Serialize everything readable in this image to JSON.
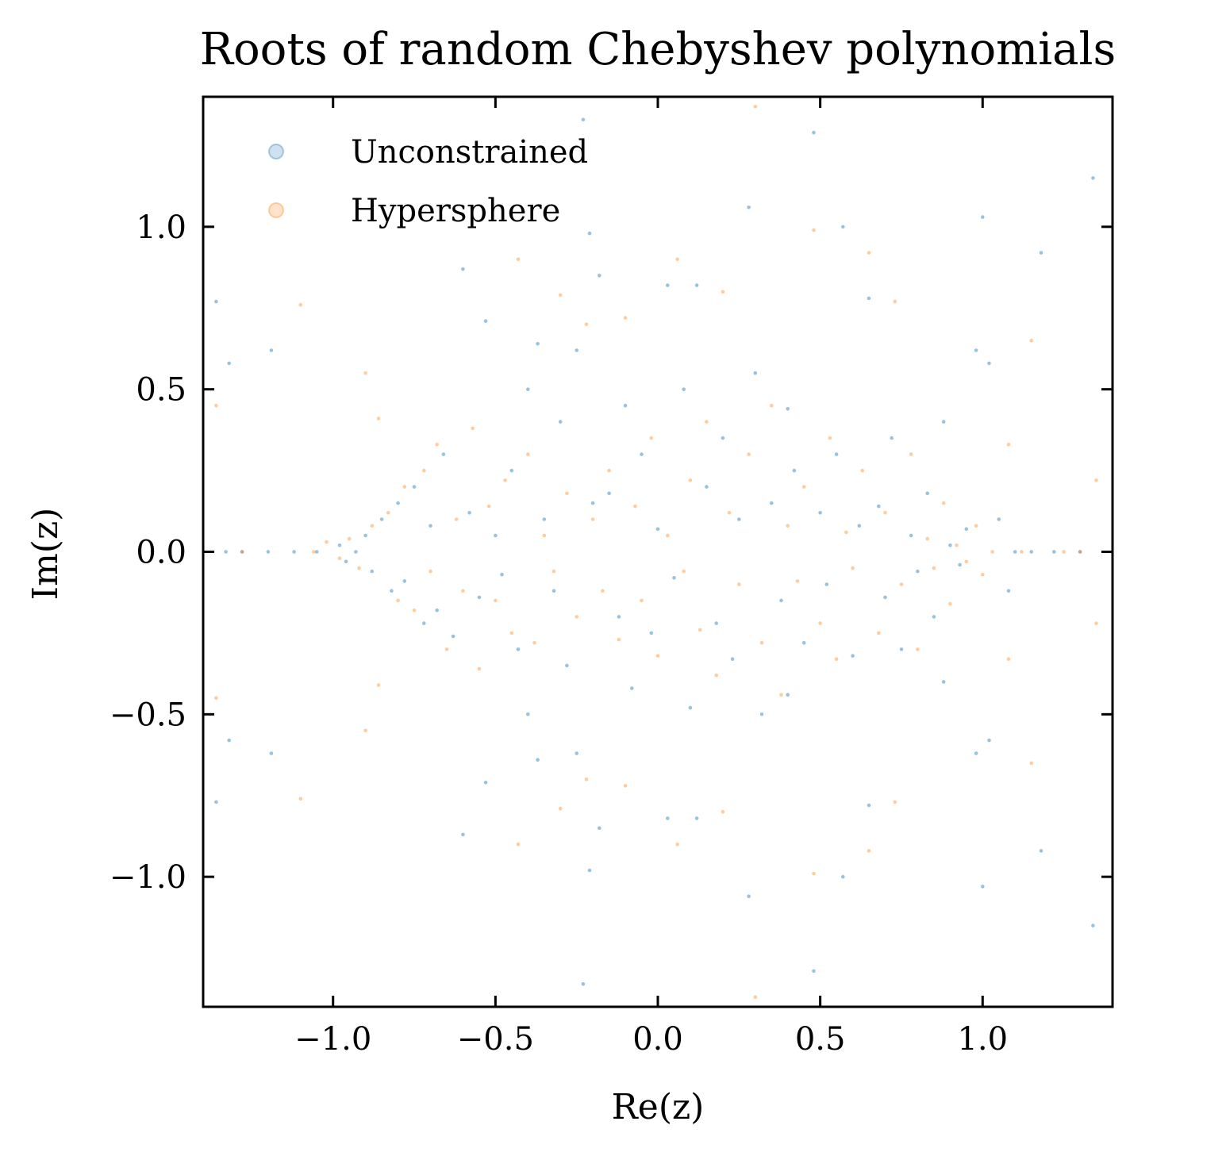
{
  "chart_data": {
    "type": "scatter",
    "title": "Roots of random Chebyshev polynomials",
    "xlabel": "Re(z)",
    "ylabel": "Im(z)",
    "xlim": [
      -1.4,
      1.4
    ],
    "ylim": [
      -1.4,
      1.4
    ],
    "xticks": [
      -1.0,
      -0.5,
      0.0,
      0.5,
      1.0
    ],
    "yticks": [
      -1.0,
      -0.5,
      0.0,
      0.5,
      1.0
    ],
    "xtick_labels": [
      "−1.0",
      "−0.5",
      "0.0",
      "0.5",
      "1.0"
    ],
    "ytick_labels": [
      "−1.0",
      "−0.5",
      "0.0",
      "0.5",
      "1.0"
    ],
    "grid": false,
    "legend_position": "top-left",
    "series": [
      {
        "name": "Unconstrained",
        "color": "#1f77b4",
        "points": [
          [
            -1.33,
            0.0
          ],
          [
            -1.28,
            0.0
          ],
          [
            -1.2,
            0.0
          ],
          [
            -1.12,
            0.0
          ],
          [
            -1.36,
            0.77
          ],
          [
            -1.36,
            -0.77
          ],
          [
            -1.32,
            0.58
          ],
          [
            -1.32,
            -0.58
          ],
          [
            -1.19,
            0.62
          ],
          [
            -1.19,
            -0.62
          ],
          [
            -1.05,
            0.0
          ],
          [
            -0.98,
            0.02
          ],
          [
            -0.96,
            -0.03
          ],
          [
            -0.93,
            0.0
          ],
          [
            -0.9,
            0.05
          ],
          [
            -0.88,
            -0.06
          ],
          [
            -0.85,
            0.1
          ],
          [
            -0.82,
            -0.12
          ],
          [
            -0.8,
            0.15
          ],
          [
            -0.78,
            -0.09
          ],
          [
            -0.75,
            0.2
          ],
          [
            -0.72,
            -0.22
          ],
          [
            -0.7,
            0.08
          ],
          [
            -0.68,
            -0.18
          ],
          [
            -0.66,
            0.3
          ],
          [
            -0.63,
            -0.26
          ],
          [
            -0.6,
            0.87
          ],
          [
            -0.6,
            -0.87
          ],
          [
            -0.58,
            0.12
          ],
          [
            -0.55,
            -0.14
          ],
          [
            -0.53,
            0.71
          ],
          [
            -0.53,
            -0.71
          ],
          [
            -0.5,
            0.05
          ],
          [
            -0.48,
            -0.07
          ],
          [
            -0.45,
            0.25
          ],
          [
            -0.43,
            -0.3
          ],
          [
            -0.4,
            0.5
          ],
          [
            -0.4,
            -0.5
          ],
          [
            -0.37,
            0.64
          ],
          [
            -0.37,
            -0.64
          ],
          [
            -0.35,
            0.1
          ],
          [
            -0.32,
            -0.12
          ],
          [
            -0.3,
            0.4
          ],
          [
            -0.28,
            -0.35
          ],
          [
            -0.25,
            0.62
          ],
          [
            -0.25,
            -0.62
          ],
          [
            -0.23,
            1.33
          ],
          [
            -0.23,
            -1.33
          ],
          [
            -0.21,
            0.98
          ],
          [
            -0.21,
            -0.98
          ],
          [
            -0.2,
            0.15
          ],
          [
            -0.18,
            0.85
          ],
          [
            -0.18,
            -0.85
          ],
          [
            -0.15,
            0.18
          ],
          [
            -0.12,
            -0.2
          ],
          [
            -0.1,
            0.45
          ],
          [
            -0.08,
            -0.42
          ],
          [
            -0.05,
            0.3
          ],
          [
            -0.02,
            -0.25
          ],
          [
            0.0,
            0.07
          ],
          [
            0.03,
            0.82
          ],
          [
            0.03,
            -0.82
          ],
          [
            0.05,
            -0.08
          ],
          [
            0.08,
            0.5
          ],
          [
            0.1,
            -0.48
          ],
          [
            0.12,
            0.82
          ],
          [
            0.12,
            -0.82
          ],
          [
            0.15,
            0.2
          ],
          [
            0.18,
            -0.22
          ],
          [
            0.2,
            0.35
          ],
          [
            0.23,
            -0.33
          ],
          [
            0.25,
            0.1
          ],
          [
            0.28,
            1.06
          ],
          [
            0.28,
            -1.06
          ],
          [
            0.3,
            0.55
          ],
          [
            0.32,
            -0.5
          ],
          [
            0.35,
            0.15
          ],
          [
            0.38,
            -0.15
          ],
          [
            0.4,
            0.44
          ],
          [
            0.4,
            -0.44
          ],
          [
            0.42,
            0.25
          ],
          [
            0.45,
            -0.28
          ],
          [
            0.48,
            1.29
          ],
          [
            0.48,
            -1.29
          ],
          [
            0.5,
            0.12
          ],
          [
            0.52,
            -0.1
          ],
          [
            0.55,
            0.3
          ],
          [
            0.57,
            1.0
          ],
          [
            0.57,
            -1.0
          ],
          [
            0.6,
            -0.32
          ],
          [
            0.62,
            0.08
          ],
          [
            0.65,
            0.78
          ],
          [
            0.65,
            -0.78
          ],
          [
            0.68,
            0.14
          ],
          [
            0.7,
            -0.14
          ],
          [
            0.72,
            0.35
          ],
          [
            0.75,
            -0.3
          ],
          [
            0.78,
            0.05
          ],
          [
            0.8,
            -0.06
          ],
          [
            0.83,
            0.18
          ],
          [
            0.85,
            -0.2
          ],
          [
            0.88,
            0.4
          ],
          [
            0.88,
            -0.4
          ],
          [
            0.9,
            0.02
          ],
          [
            0.93,
            -0.04
          ],
          [
            0.95,
            0.07
          ],
          [
            0.98,
            0.62
          ],
          [
            0.98,
            -0.62
          ],
          [
            1.0,
            1.03
          ],
          [
            1.0,
            -1.03
          ],
          [
            1.02,
            0.58
          ],
          [
            1.02,
            -0.58
          ],
          [
            1.05,
            0.1
          ],
          [
            1.08,
            -0.12
          ],
          [
            1.1,
            0.0
          ],
          [
            1.15,
            0.0
          ],
          [
            1.18,
            0.92
          ],
          [
            1.18,
            -0.92
          ],
          [
            1.22,
            0.0
          ],
          [
            1.3,
            0.0
          ],
          [
            1.34,
            1.15
          ],
          [
            1.34,
            -1.15
          ]
        ]
      },
      {
        "name": "Hypersphere",
        "color": "#ff7f0e",
        "points": [
          [
            -1.36,
            0.45
          ],
          [
            -1.36,
            -0.45
          ],
          [
            -1.28,
            0.0
          ],
          [
            -1.1,
            0.76
          ],
          [
            -1.1,
            -0.76
          ],
          [
            -1.06,
            0.0
          ],
          [
            -1.02,
            0.03
          ],
          [
            -0.98,
            -0.02
          ],
          [
            -0.95,
            0.04
          ],
          [
            -0.92,
            -0.05
          ],
          [
            -0.9,
            0.55
          ],
          [
            -0.9,
            -0.55
          ],
          [
            -0.88,
            0.08
          ],
          [
            -0.86,
            -0.41
          ],
          [
            -0.86,
            0.41
          ],
          [
            -0.83,
            0.12
          ],
          [
            -0.8,
            -0.15
          ],
          [
            -0.78,
            0.2
          ],
          [
            -0.75,
            -0.18
          ],
          [
            -0.72,
            0.25
          ],
          [
            -0.7,
            -0.06
          ],
          [
            -0.68,
            0.33
          ],
          [
            -0.65,
            -0.3
          ],
          [
            -0.62,
            0.1
          ],
          [
            -0.6,
            -0.12
          ],
          [
            -0.57,
            0.38
          ],
          [
            -0.55,
            -0.36
          ],
          [
            -0.52,
            0.14
          ],
          [
            -0.5,
            -0.15
          ],
          [
            -0.47,
            0.22
          ],
          [
            -0.45,
            -0.25
          ],
          [
            -0.43,
            0.9
          ],
          [
            -0.43,
            -0.9
          ],
          [
            -0.4,
            0.3
          ],
          [
            -0.38,
            -0.28
          ],
          [
            -0.35,
            0.05
          ],
          [
            -0.32,
            -0.06
          ],
          [
            -0.3,
            0.79
          ],
          [
            -0.3,
            -0.79
          ],
          [
            -0.28,
            0.18
          ],
          [
            -0.25,
            -0.2
          ],
          [
            -0.22,
            0.7
          ],
          [
            -0.22,
            -0.7
          ],
          [
            -0.2,
            0.1
          ],
          [
            -0.17,
            -0.12
          ],
          [
            -0.15,
            0.25
          ],
          [
            -0.12,
            -0.27
          ],
          [
            -0.1,
            0.72
          ],
          [
            -0.1,
            -0.72
          ],
          [
            -0.07,
            0.14
          ],
          [
            -0.05,
            -0.15
          ],
          [
            -0.02,
            0.35
          ],
          [
            0.0,
            -0.32
          ],
          [
            0.03,
            0.05
          ],
          [
            0.06,
            0.9
          ],
          [
            0.06,
            -0.9
          ],
          [
            0.08,
            -0.06
          ],
          [
            0.1,
            0.22
          ],
          [
            0.13,
            -0.24
          ],
          [
            0.15,
            0.4
          ],
          [
            0.18,
            -0.38
          ],
          [
            0.2,
            0.8
          ],
          [
            0.2,
            -0.8
          ],
          [
            0.22,
            0.12
          ],
          [
            0.25,
            -0.1
          ],
          [
            0.28,
            0.3
          ],
          [
            0.3,
            1.37
          ],
          [
            0.3,
            -1.37
          ],
          [
            0.32,
            -0.28
          ],
          [
            0.35,
            0.45
          ],
          [
            0.38,
            -0.44
          ],
          [
            0.4,
            0.08
          ],
          [
            0.43,
            -0.09
          ],
          [
            0.45,
            0.2
          ],
          [
            0.48,
            0.99
          ],
          [
            0.48,
            -0.99
          ],
          [
            0.5,
            -0.22
          ],
          [
            0.53,
            0.35
          ],
          [
            0.55,
            -0.33
          ],
          [
            0.58,
            0.06
          ],
          [
            0.6,
            -0.05
          ],
          [
            0.63,
            0.25
          ],
          [
            0.65,
            0.92
          ],
          [
            0.65,
            -0.92
          ],
          [
            0.68,
            -0.25
          ],
          [
            0.7,
            0.12
          ],
          [
            0.73,
            0.77
          ],
          [
            0.73,
            -0.77
          ],
          [
            0.75,
            -0.1
          ],
          [
            0.78,
            0.3
          ],
          [
            0.8,
            -0.3
          ],
          [
            0.83,
            0.04
          ],
          [
            0.85,
            -0.05
          ],
          [
            0.88,
            0.15
          ],
          [
            0.9,
            -0.16
          ],
          [
            0.92,
            0.02
          ],
          [
            0.95,
            -0.03
          ],
          [
            0.98,
            0.08
          ],
          [
            1.0,
            -0.07
          ],
          [
            1.03,
            0.0
          ],
          [
            1.08,
            0.33
          ],
          [
            1.08,
            -0.33
          ],
          [
            1.12,
            0.0
          ],
          [
            1.15,
            0.65
          ],
          [
            1.15,
            -0.65
          ],
          [
            1.25,
            0.0
          ],
          [
            1.3,
            0.0
          ],
          [
            1.35,
            0.22
          ],
          [
            1.35,
            -0.22
          ]
        ]
      }
    ]
  }
}
